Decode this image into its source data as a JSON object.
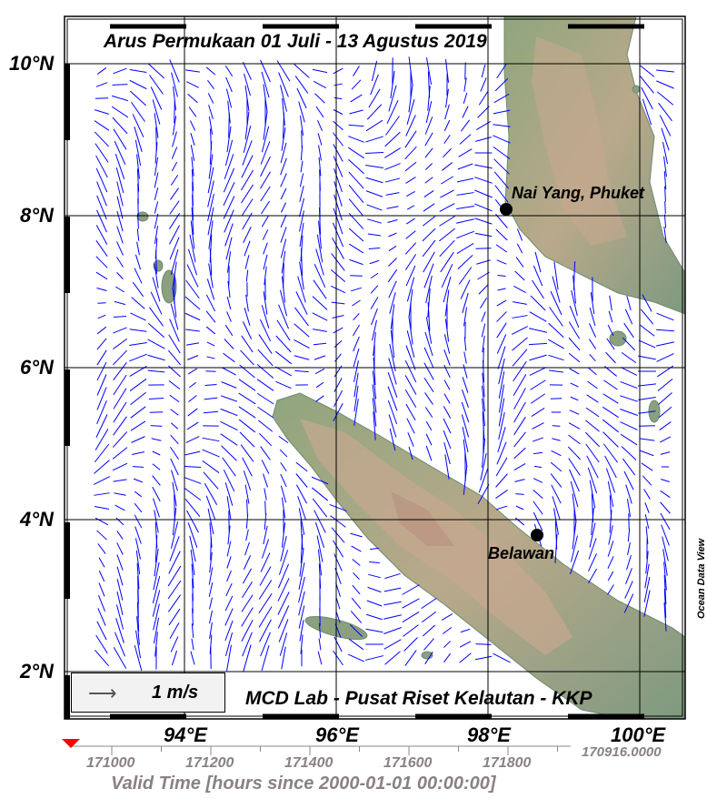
{
  "map": {
    "title": "Arus Permukaan 01 Juli - 13 Agustus 2019",
    "credit": "MCD Lab - Pusat Riset Kelautan - KKP",
    "watermark": "Ocean Data View",
    "lat_labels": [
      "10°N",
      "8°N",
      "6°N",
      "4°N",
      "2°N"
    ],
    "lon_labels": [
      "94°E",
      "96°E",
      "98°E",
      "100°E"
    ],
    "legend": {
      "scale_label": "1 m/s",
      "icon": "arrow-right-icon"
    },
    "places": [
      {
        "name": "Nai Yang, Phuket",
        "lon": 98.3,
        "lat": 8.1
      },
      {
        "name": "Belawan",
        "lon": 98.7,
        "lat": 3.8
      }
    ],
    "extent": {
      "lon": [
        92.4,
        100.6
      ],
      "lat": [
        1.4,
        10.6
      ]
    },
    "colors": {
      "arrows": "#0000ff",
      "land_low": "#7a9a7a",
      "land_high": "#c9a98a",
      "marker": "#000000"
    }
  },
  "time_axis": {
    "label": "Valid Time [hours since 2000-01-01 00:00:00]",
    "ticks": [
      "171000",
      "171200",
      "171400",
      "171600",
      "171800"
    ],
    "current_value": "170916.0000",
    "marker_color": "#ff0000"
  }
}
